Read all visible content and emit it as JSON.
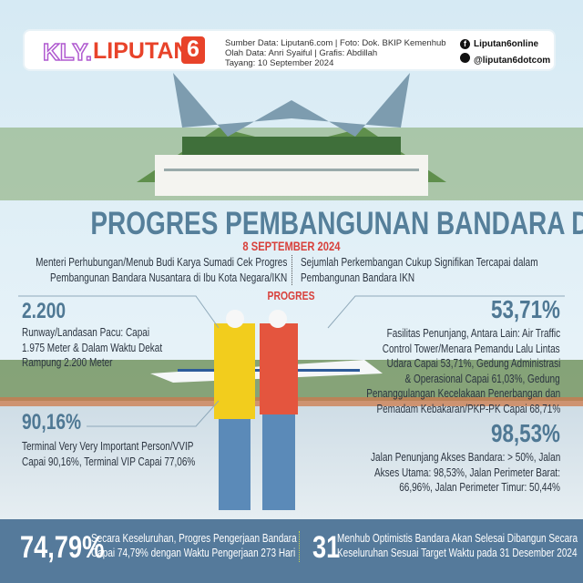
{
  "header": {
    "logo_kly": "KLY.",
    "logo_brand": "LIPUTAN",
    "logo_six": "6",
    "credits": [
      "Sumber Data: Liputan6.com | Foto: Dok. BKIP Kemenhub",
      "Olah Data: Anri Syaiful | Grafis: Abdillah",
      "Tayang: 10 September 2024"
    ],
    "social": [
      {
        "icon": "facebook-icon",
        "handle": "Liputan6online"
      },
      {
        "icon": "twitter-icon",
        "handle": "@liputan6dotcom"
      }
    ]
  },
  "title": "PROGRES PEMBANGUNAN BANDARA DI IKN NUSANTARA",
  "date": "8 SEPTEMBER 2024",
  "intro_left": [
    "Menteri Perhubungan/Menub Budi Karya Sumadi Cek Progres",
    "Pembangunan Bandara Nusantara di Ibu Kota Negara/IKN"
  ],
  "intro_right": [
    "Sejumlah Perkembangan Cukup Signifikan Tercapai dalam",
    "Pembangunan Bandara IKN"
  ],
  "progress_heading": "PROGRES",
  "stats": [
    {
      "value": "2.200",
      "lines": [
        "Runway/Landasan Pacu: Capai",
        "1.975 Meter & Dalam Waktu Dekat",
        "Rampung 2.200 Meter"
      ]
    },
    {
      "value": "90,16%",
      "lines": [
        "Terminal Very Very Important Person/VVIP",
        "Capai 90,16%, Terminal VIP Capai 77,06%"
      ]
    },
    {
      "value": "53,71%",
      "lines": [
        "Fasilitas Penunjang, Antara Lain: Air Traffic",
        "Control Tower/Menara Pemandu Lalu Lintas",
        "Udara Capai 53,71%, Gedung Administrasi",
        "& Operasional Capai 61,03%, Gedung",
        "Penanggulangan Kecelakaan Penerbangan dan",
        "Pemadam Kebakaran/PKP-PK Capai 68,71%"
      ]
    },
    {
      "value": "98,53%",
      "lines": [
        "Jalan Penunjang Akses Bandara: > 50%, Jalan",
        "Akses Utama: 98,53%, Jalan Perimeter Barat:",
        "66,96%, Jalan Perimeter Timur: 50,44%"
      ]
    }
  ],
  "footer": [
    {
      "value": "74,79%",
      "lines": [
        "Secara Keseluruhan, Progres Pengerjaan Bandara",
        "Capai 74,79% dengan Waktu Pengerjaan 273 Hari"
      ]
    },
    {
      "value": "31",
      "lines": [
        "Menhub Optimistis Bandara Akan Selesai Dibangun Secara",
        "Keseluruhan Sesuai Target Waktu pada 31 Desember 2024"
      ]
    }
  ],
  "colors": {
    "title": "#557f9a",
    "date": "#d8413c",
    "bottom_bar": "#557a9b",
    "brand_red": "#e8432a"
  }
}
